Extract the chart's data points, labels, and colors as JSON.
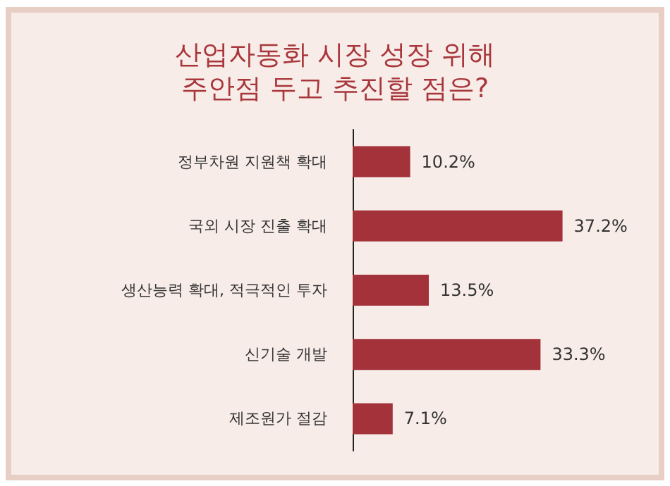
{
  "chart_data": {
    "type": "bar",
    "orientation": "horizontal",
    "title": "산업자동화 시장 성장 위해\n주안점 두고 추진할 점은?",
    "categories": [
      "정부차원 지원책 확대",
      "국외 시장 진출 확대",
      "생산능력 확대, 적극적인 투자",
      "신기술 개발",
      "제조원가 절감"
    ],
    "values": [
      10.2,
      37.2,
      13.5,
      33.3,
      7.1
    ],
    "value_labels": [
      "10.2%",
      "37.2%",
      "13.5%",
      "33.3%",
      "7.1%"
    ],
    "color": "#a3323a"
  }
}
